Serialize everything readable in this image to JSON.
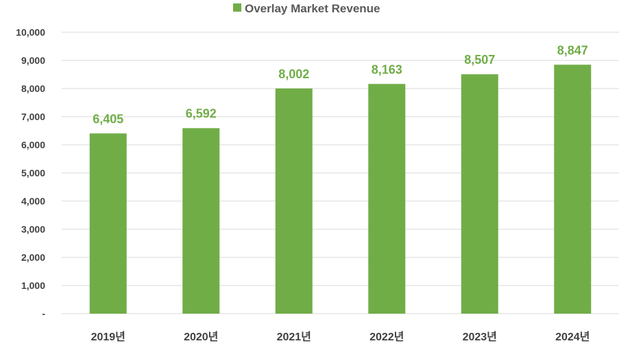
{
  "chart_data": {
    "type": "bar",
    "categories": [
      "2019년",
      "2020년",
      "2021년",
      "2022년",
      "2023년",
      "2024년"
    ],
    "series": [
      {
        "name": "Overlay Market Revenue",
        "values": [
          6405,
          6592,
          8002,
          8163,
          8507,
          8847
        ],
        "value_labels": [
          "6,405",
          "6,592",
          "8,002",
          "8,163",
          "8,507",
          "8,847"
        ]
      }
    ],
    "ylim": [
      0,
      10000
    ],
    "yticks": [
      0,
      1000,
      2000,
      3000,
      4000,
      5000,
      6000,
      7000,
      8000,
      9000,
      10000
    ],
    "ytick_labels": [
      "-",
      "1,000",
      "2,000",
      "3,000",
      "4,000",
      "5,000",
      "6,000",
      "7,000",
      "8,000",
      "9,000",
      "10,000"
    ],
    "grid": true,
    "legend_position": "top-center",
    "colors": {
      "bar": "#70AD47",
      "data_label": "#70AD47",
      "grid": "#D9D9D9"
    }
  }
}
